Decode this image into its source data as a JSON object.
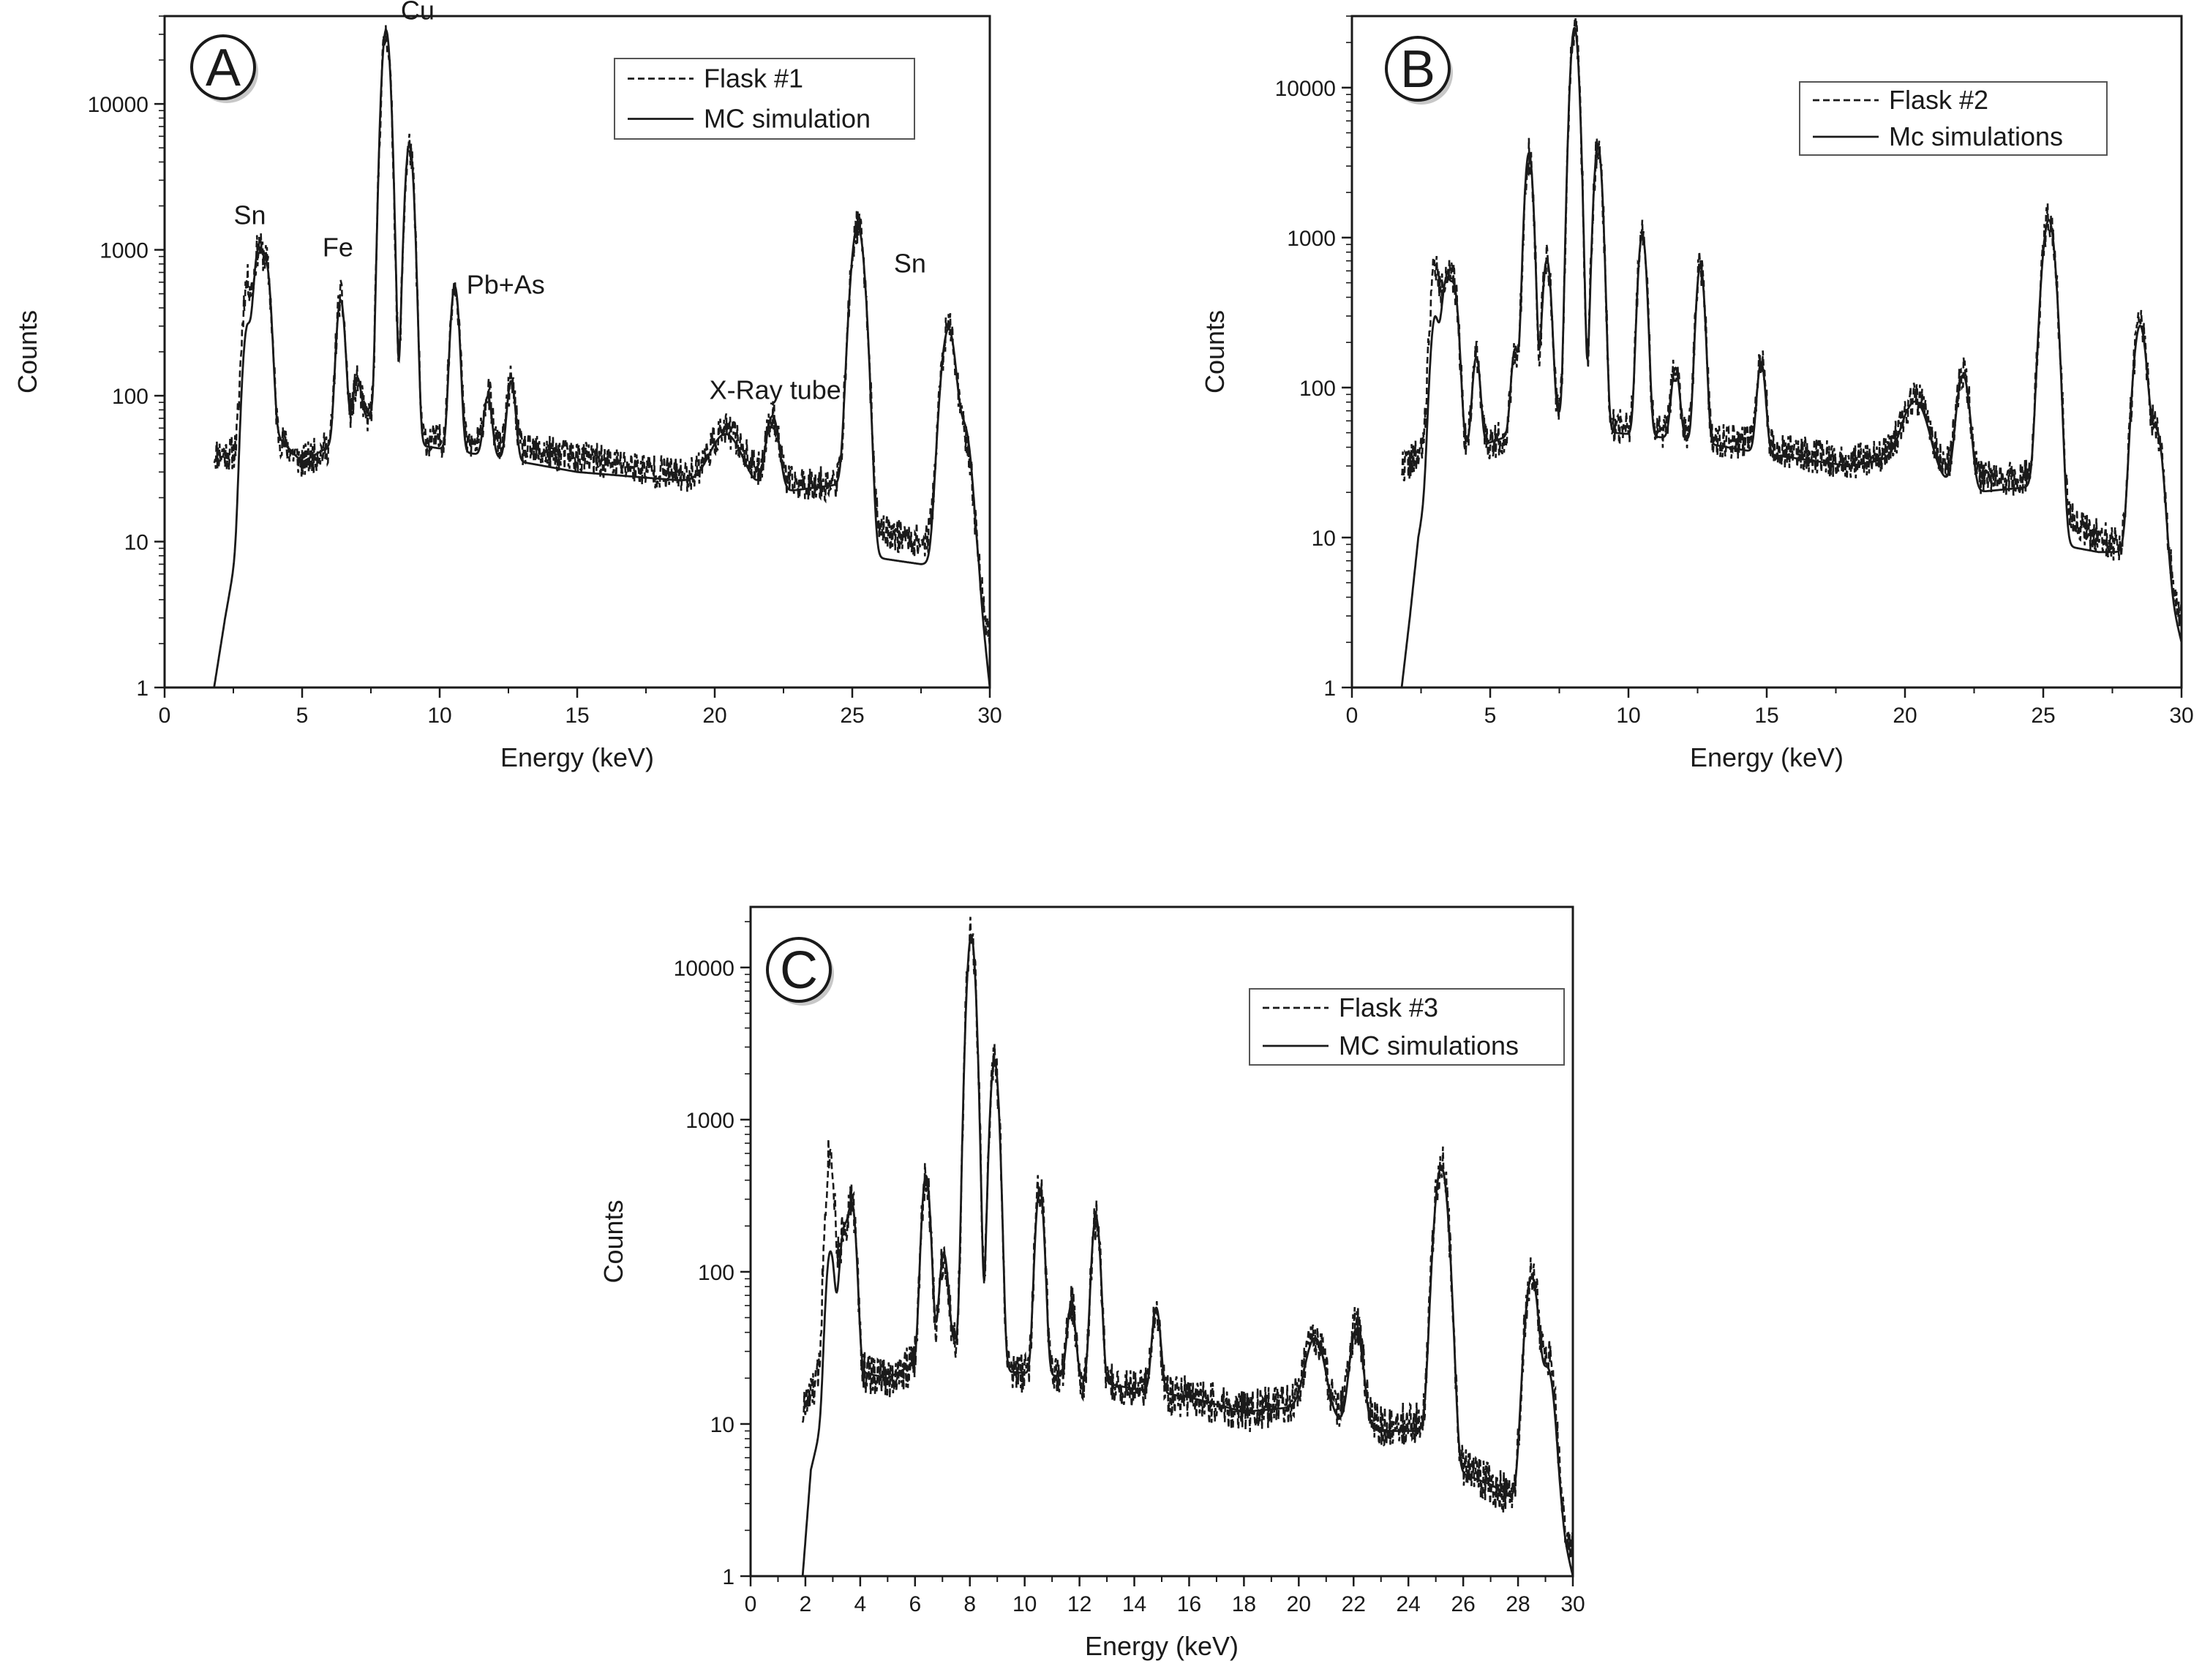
{
  "figure": {
    "colors": {
      "axes": "#1a1a1a",
      "background": "#ffffff",
      "badge_shadow": "#9a9a9a"
    }
  },
  "chart_data": [
    {
      "panel": "A",
      "type": "line",
      "y_scale": "log",
      "xlabel": "Energy (keV)",
      "ylabel": "Counts",
      "xlim": [
        0,
        30
      ],
      "ylim": [
        1,
        40000
      ],
      "x_ticks": [
        0,
        5,
        10,
        15,
        20,
        25,
        30
      ],
      "y_ticks": [
        1,
        10,
        100,
        1000,
        10000
      ],
      "legend": {
        "position": "top-right"
      },
      "series": [
        {
          "name": "Flask #1",
          "style": "dashed",
          "baseline": [
            [
              1.8,
              40
            ],
            [
              3.0,
              40
            ],
            [
              4.0,
              55
            ],
            [
              5.0,
              35
            ],
            [
              6.0,
              45
            ],
            [
              7.5,
              75
            ],
            [
              9.5,
              50
            ],
            [
              12,
              45
            ],
            [
              15,
              38
            ],
            [
              19,
              28
            ],
            [
              21,
              30
            ],
            [
              22.5,
              25
            ],
            [
              24.8,
              25
            ],
            [
              25.4,
              13
            ],
            [
              27.5,
              10
            ],
            [
              29.0,
              10
            ],
            [
              29.6,
              6
            ],
            [
              30,
              2
            ]
          ],
          "peaks": [
            [
              3.0,
              550,
              0.14
            ],
            [
              3.4,
              900,
              0.14
            ],
            [
              3.7,
              700,
              0.14
            ],
            [
              6.4,
              420,
              0.13
            ],
            [
              7.0,
              60,
              0.13
            ],
            [
              8.05,
              30000,
              0.13
            ],
            [
              8.9,
              5000,
              0.13
            ],
            [
              10.55,
              550,
              0.13
            ],
            [
              11.75,
              60,
              0.13
            ],
            [
              12.6,
              80,
              0.13
            ],
            [
              20.4,
              28,
              0.5
            ],
            [
              22.1,
              45,
              0.2
            ],
            [
              25.2,
              1450,
              0.2
            ],
            [
              28.5,
              280,
              0.22
            ],
            [
              29.1,
              40,
              0.2
            ]
          ],
          "noise": 0.12,
          "seed": 11
        },
        {
          "name": "MC simulation",
          "style": "solid",
          "baseline": [
            [
              1.8,
              1
            ],
            [
              2.2,
              3
            ],
            [
              2.6,
              8
            ],
            [
              3.0,
              40
            ],
            [
              4.0,
              55
            ],
            [
              5.0,
              35
            ],
            [
              6.0,
              45
            ],
            [
              7.5,
              75
            ],
            [
              9.5,
              45
            ],
            [
              12,
              38
            ],
            [
              15,
              30
            ],
            [
              19,
              26
            ],
            [
              21,
              24
            ],
            [
              22.5,
              22
            ],
            [
              24.8,
              25
            ],
            [
              25.4,
              8
            ],
            [
              27.5,
              7
            ],
            [
              29.0,
              7
            ],
            [
              29.6,
              5
            ],
            [
              30,
              1
            ]
          ],
          "peaks": [
            [
              3.0,
              250,
              0.14
            ],
            [
              3.4,
              900,
              0.14
            ],
            [
              3.7,
              700,
              0.14
            ],
            [
              6.4,
              400,
              0.13
            ],
            [
              7.0,
              70,
              0.13
            ],
            [
              8.05,
              32000,
              0.13
            ],
            [
              8.9,
              5200,
              0.13
            ],
            [
              10.55,
              520,
              0.13
            ],
            [
              11.75,
              60,
              0.13
            ],
            [
              12.6,
              90,
              0.13
            ],
            [
              20.4,
              30,
              0.5
            ],
            [
              22.1,
              50,
              0.2
            ],
            [
              25.2,
              1450,
              0.2
            ],
            [
              28.5,
              280,
              0.22
            ],
            [
              29.1,
              50,
              0.2
            ]
          ],
          "noise": 0,
          "seed": 0
        }
      ],
      "annotations": [
        {
          "text": "Sn",
          "x": 3.1,
          "y": 1500
        },
        {
          "text": "Fe",
          "x": 6.3,
          "y": 900
        },
        {
          "text": "Cu",
          "x": 9.2,
          "y": 38000
        },
        {
          "text": "Pb+As",
          "x": 12.4,
          "y": 500
        },
        {
          "text": "X-Ray tube",
          "x": 22.2,
          "y": 95
        },
        {
          "text": "Sn",
          "x": 27.1,
          "y": 700
        }
      ]
    },
    {
      "panel": "B",
      "type": "line",
      "y_scale": "log",
      "xlabel": "Energy (keV)",
      "ylabel": "Counts",
      "xlim": [
        0,
        30
      ],
      "ylim": [
        1,
        30000
      ],
      "x_ticks": [
        0,
        5,
        10,
        15,
        20,
        25,
        30
      ],
      "y_ticks": [
        1,
        10,
        100,
        1000,
        10000
      ],
      "legend": {
        "position": "top-right"
      },
      "series": [
        {
          "name": "Flask #2",
          "style": "dashed",
          "baseline": [
            [
              1.8,
              30
            ],
            [
              3.0,
              40
            ],
            [
              4.5,
              40
            ],
            [
              6.0,
              50
            ],
            [
              8.0,
              70
            ],
            [
              9.5,
              55
            ],
            [
              12,
              50
            ],
            [
              15,
              40
            ],
            [
              18,
              32
            ],
            [
              20,
              38
            ],
            [
              21,
              30
            ],
            [
              22.5,
              25
            ],
            [
              24.8,
              25
            ],
            [
              25.5,
              15
            ],
            [
              27,
              10
            ],
            [
              28.5,
              8
            ],
            [
              29.6,
              5
            ],
            [
              30,
              3
            ]
          ],
          "peaks": [
            [
              3.0,
              600,
              0.14
            ],
            [
              3.4,
              500,
              0.14
            ],
            [
              3.7,
              400,
              0.14
            ],
            [
              4.5,
              130,
              0.12
            ],
            [
              5.9,
              130,
              0.12
            ],
            [
              6.4,
              3500,
              0.13
            ],
            [
              7.05,
              650,
              0.13
            ],
            [
              8.05,
              25000,
              0.13
            ],
            [
              8.9,
              4000,
              0.13
            ],
            [
              10.5,
              1000,
              0.13
            ],
            [
              11.7,
              90,
              0.13
            ],
            [
              12.6,
              600,
              0.13
            ],
            [
              14.8,
              110,
              0.13
            ],
            [
              20.4,
              50,
              0.4
            ],
            [
              22.1,
              100,
              0.2
            ],
            [
              25.2,
              1300,
              0.2
            ],
            [
              28.5,
              250,
              0.2
            ],
            [
              29.1,
              45,
              0.2
            ]
          ],
          "noise": 0.12,
          "seed": 22
        },
        {
          "name": "Mc simulations",
          "style": "solid",
          "baseline": [
            [
              1.8,
              1
            ],
            [
              2.1,
              3
            ],
            [
              2.4,
              10
            ],
            [
              3.0,
              40
            ],
            [
              4.5,
              40
            ],
            [
              6.0,
              50
            ],
            [
              8.0,
              70
            ],
            [
              9.5,
              50
            ],
            [
              12,
              45
            ],
            [
              15,
              36
            ],
            [
              18,
              30
            ],
            [
              20,
              35
            ],
            [
              21,
              25
            ],
            [
              22.5,
              20
            ],
            [
              24.8,
              22
            ],
            [
              25.5,
              9
            ],
            [
              27,
              8
            ],
            [
              28.5,
              8
            ],
            [
              29.6,
              4
            ],
            [
              30,
              2
            ]
          ],
          "peaks": [
            [
              3.0,
              250,
              0.14
            ],
            [
              3.4,
              450,
              0.14
            ],
            [
              3.7,
              400,
              0.14
            ],
            [
              4.5,
              120,
              0.12
            ],
            [
              5.9,
              130,
              0.12
            ],
            [
              6.4,
              3600,
              0.13
            ],
            [
              7.05,
              650,
              0.13
            ],
            [
              8.05,
              25000,
              0.13
            ],
            [
              8.9,
              4000,
              0.13
            ],
            [
              10.5,
              1000,
              0.13
            ],
            [
              11.7,
              90,
              0.13
            ],
            [
              12.6,
              600,
              0.13
            ],
            [
              14.8,
              110,
              0.13
            ],
            [
              20.4,
              50,
              0.4
            ],
            [
              22.1,
              100,
              0.2
            ],
            [
              25.2,
              1300,
              0.2
            ],
            [
              28.5,
              250,
              0.2
            ],
            [
              29.1,
              45,
              0.2
            ]
          ],
          "noise": 0,
          "seed": 0
        }
      ],
      "annotations": []
    },
    {
      "panel": "C",
      "type": "line",
      "y_scale": "log",
      "xlabel": "Energy (keV)",
      "ylabel": "Counts",
      "xlim": [
        0,
        30
      ],
      "ylim": [
        1,
        25000
      ],
      "x_ticks": [
        0,
        2,
        4,
        6,
        8,
        10,
        12,
        14,
        16,
        18,
        20,
        22,
        24,
        26,
        28,
        30
      ],
      "y_ticks": [
        1,
        10,
        100,
        1000,
        10000
      ],
      "legend": {
        "position": "top-right"
      },
      "series": [
        {
          "name": "Flask #3",
          "style": "dashed",
          "baseline": [
            [
              1.9,
              12
            ],
            [
              2.5,
              20
            ],
            [
              3.0,
              40
            ],
            [
              4.0,
              22
            ],
            [
              5.0,
              20
            ],
            [
              6.0,
              25
            ],
            [
              8.0,
              40
            ],
            [
              9.5,
              22
            ],
            [
              12,
              20
            ],
            [
              14,
              17
            ],
            [
              16,
              15
            ],
            [
              18,
              12
            ],
            [
              20,
              14
            ],
            [
              21,
              12
            ],
            [
              23,
              10
            ],
            [
              25.0,
              10
            ],
            [
              25.6,
              6
            ],
            [
              27,
              4
            ],
            [
              28.2,
              3
            ],
            [
              29.6,
              2
            ],
            [
              30,
              1.5
            ]
          ],
          "peaks": [
            [
              2.9,
              600,
              0.13
            ],
            [
              3.4,
              150,
              0.13
            ],
            [
              3.7,
              250,
              0.13
            ],
            [
              6.4,
              380,
              0.13
            ],
            [
              7.05,
              100,
              0.13
            ],
            [
              8.05,
              16000,
              0.13
            ],
            [
              8.9,
              2400,
              0.13
            ],
            [
              10.55,
              340,
              0.13
            ],
            [
              11.7,
              40,
              0.13
            ],
            [
              12.6,
              200,
              0.13
            ],
            [
              14.8,
              40,
              0.13
            ],
            [
              20.6,
              25,
              0.3
            ],
            [
              22.1,
              35,
              0.2
            ],
            [
              25.2,
              500,
              0.2
            ],
            [
              28.5,
              95,
              0.2
            ],
            [
              29.1,
              25,
              0.2
            ]
          ],
          "noise": 0.14,
          "seed": 33
        },
        {
          "name": "MC simulations",
          "style": "solid",
          "baseline": [
            [
              1.9,
              1
            ],
            [
              2.2,
              5
            ],
            [
              2.6,
              10
            ],
            [
              3.0,
              35
            ],
            [
              4.0,
              22
            ],
            [
              5.0,
              20
            ],
            [
              6.0,
              25
            ],
            [
              8.0,
              40
            ],
            [
              9.5,
              22
            ],
            [
              12,
              20
            ],
            [
              14,
              17
            ],
            [
              16,
              15
            ],
            [
              18,
              12
            ],
            [
              20,
              13
            ],
            [
              21,
              11
            ],
            [
              23,
              9
            ],
            [
              25.0,
              9
            ],
            [
              25.6,
              5
            ],
            [
              27,
              4
            ],
            [
              28.2,
              3
            ],
            [
              29.6,
              2
            ],
            [
              30,
              1
            ]
          ],
          "peaks": [
            [
              2.9,
              110,
              0.13
            ],
            [
              3.4,
              150,
              0.13
            ],
            [
              3.7,
              250,
              0.13
            ],
            [
              6.4,
              400,
              0.13
            ],
            [
              7.05,
              100,
              0.13
            ],
            [
              8.05,
              16000,
              0.13
            ],
            [
              8.9,
              2400,
              0.13
            ],
            [
              10.55,
              330,
              0.13
            ],
            [
              11.7,
              40,
              0.13
            ],
            [
              12.6,
              210,
              0.13
            ],
            [
              14.8,
              42,
              0.13
            ],
            [
              20.6,
              25,
              0.3
            ],
            [
              22.1,
              32,
              0.2
            ],
            [
              25.2,
              480,
              0.2
            ],
            [
              28.5,
              90,
              0.2
            ],
            [
              29.1,
              20,
              0.2
            ]
          ],
          "noise": 0,
          "seed": 0
        }
      ],
      "annotations": []
    }
  ]
}
